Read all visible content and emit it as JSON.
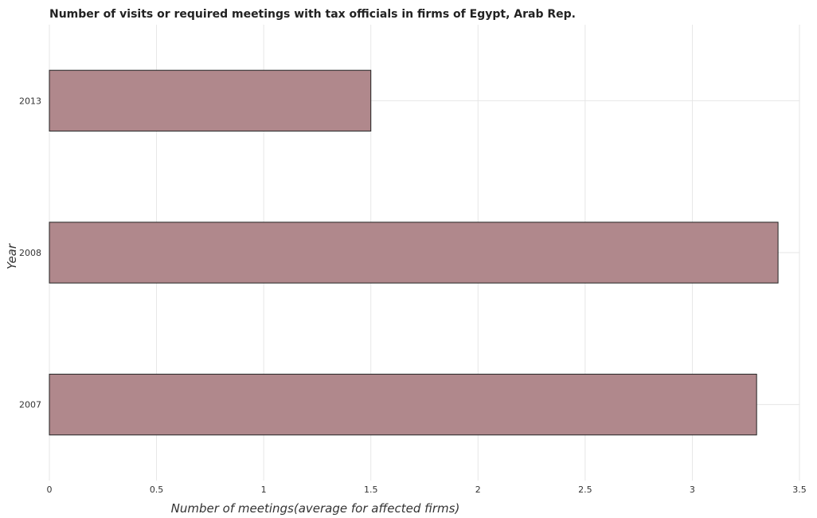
{
  "chart_data": {
    "type": "bar",
    "orientation": "horizontal",
    "title": "Number of visits or required meetings with tax officials in firms of Egypt, Arab Rep.",
    "xlabel": "Number of meetings(average for affected firms)",
    "ylabel": "Year",
    "categories": [
      "2007",
      "2008",
      "2013"
    ],
    "values": [
      3.3,
      3.4,
      1.5
    ],
    "xlim": [
      0,
      3.5
    ],
    "xticks": [
      "0",
      "0.5",
      "1",
      "1.5",
      "2",
      "2.5",
      "3",
      "3.5"
    ],
    "grid": true,
    "bar_color": "#b0888c",
    "bar_edge_color": "#222222"
  }
}
